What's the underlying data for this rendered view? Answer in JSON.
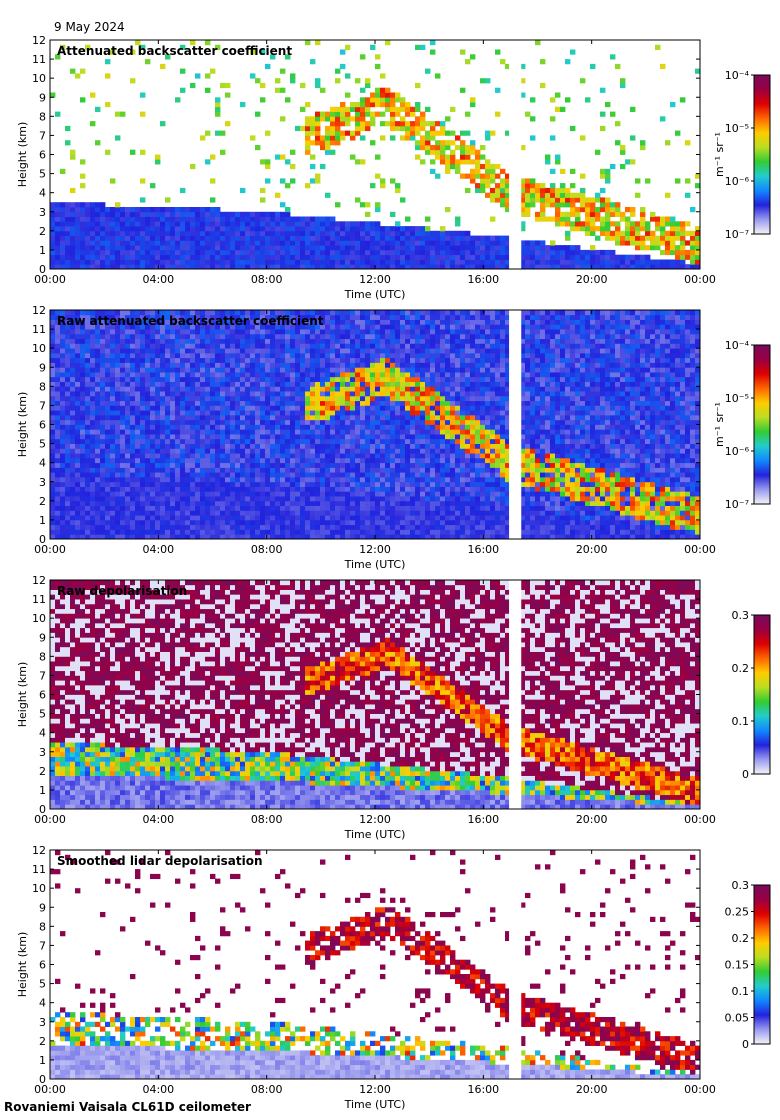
{
  "date": "9 May 2024",
  "caption": "Rovaniemi Vaisala CL61D ceilometer",
  "chart_data": [
    {
      "type": "heatmap",
      "title": "Attenuated backscatter coefficient",
      "xlabel": "Time (UTC)",
      "ylabel": "Height (km)",
      "x_ticks": [
        "00:00",
        "04:00",
        "08:00",
        "12:00",
        "16:00",
        "20:00",
        "00:00"
      ],
      "xlim": [
        0,
        24
      ],
      "ylim": [
        0,
        12
      ],
      "y_ticks": [
        0,
        1,
        2,
        3,
        4,
        5,
        6,
        7,
        8,
        9,
        10,
        11,
        12
      ],
      "data_gap_hours": [
        16.95,
        17.4
      ],
      "colorbar": {
        "label": "m⁻¹ sr⁻¹",
        "scale": "log",
        "range": [
          1e-07,
          0.0001
        ],
        "ticks": [
          "10⁻⁴",
          "10⁻⁵",
          "10⁻⁶",
          "10⁻⁷"
        ]
      },
      "features": {
        "boundary_layer_top_km": [
          [
            0,
            3.5
          ],
          [
            8,
            3.0
          ],
          [
            16,
            1.8
          ],
          [
            24,
            0.3
          ]
        ],
        "cloud_base_km": [
          [
            9.5,
            6.0
          ],
          [
            12.5,
            7.5
          ],
          [
            14,
            6.0
          ],
          [
            16.9,
            3.0
          ],
          [
            19,
            2.5
          ],
          [
            21,
            1.0
          ],
          [
            24,
            0.2
          ]
        ]
      }
    },
    {
      "type": "heatmap",
      "title": "Raw attenuated backscatter coefficient",
      "xlabel": "Time (UTC)",
      "ylabel": "Height (km)",
      "x_ticks": [
        "00:00",
        "04:00",
        "08:00",
        "12:00",
        "16:00",
        "20:00",
        "00:00"
      ],
      "xlim": [
        0,
        24
      ],
      "ylim": [
        0,
        12
      ],
      "y_ticks": [
        0,
        1,
        2,
        3,
        4,
        5,
        6,
        7,
        8,
        9,
        10,
        11,
        12
      ],
      "data_gap_hours": [
        16.95,
        17.4
      ],
      "colorbar": {
        "label": "m⁻¹ sr⁻¹",
        "scale": "log",
        "range": [
          1e-07,
          0.0001
        ],
        "ticks": [
          "10⁻⁴",
          "10⁻⁵",
          "10⁻⁶",
          "10⁻⁷"
        ]
      }
    },
    {
      "type": "heatmap",
      "title": "Raw depolarisation",
      "xlabel": "Time (UTC)",
      "ylabel": "Height (km)",
      "x_ticks": [
        "00:00",
        "04:00",
        "08:00",
        "12:00",
        "16:00",
        "20:00",
        "00:00"
      ],
      "xlim": [
        0,
        24
      ],
      "ylim": [
        0,
        12
      ],
      "y_ticks": [
        0,
        1,
        2,
        3,
        4,
        5,
        6,
        7,
        8,
        9,
        10,
        11,
        12
      ],
      "data_gap_hours": [
        16.95,
        17.4
      ],
      "colorbar": {
        "label": "",
        "scale": "linear",
        "range": [
          0,
          0.3
        ],
        "ticks": [
          "0.3",
          "0.2",
          "0.1",
          "0"
        ]
      }
    },
    {
      "type": "heatmap",
      "title": "Smoothed lidar depolarisation",
      "xlabel": "Time (UTC)",
      "ylabel": "Height (km)",
      "x_ticks": [
        "00:00",
        "04:00",
        "08:00",
        "12:00",
        "16:00",
        "20:00",
        "00:00"
      ],
      "xlim": [
        0,
        24
      ],
      "ylim": [
        0,
        12
      ],
      "y_ticks": [
        0,
        1,
        2,
        3,
        4,
        5,
        6,
        7,
        8,
        9,
        10,
        11,
        12
      ],
      "data_gap_hours": [
        16.95,
        17.4
      ],
      "colorbar": {
        "label": "",
        "scale": "linear",
        "range": [
          0,
          0.3
        ],
        "ticks": [
          "0.3",
          "0.25",
          "0.2",
          "0.15",
          "0.1",
          "0.05",
          "0"
        ]
      }
    }
  ],
  "colormap": [
    "#f4f4f8",
    "#9999ee",
    "#2222dd",
    "#1188ff",
    "#22cccc",
    "#33cc33",
    "#bbdd22",
    "#ffcc00",
    "#ff6600",
    "#dd0000",
    "#990044",
    "#7a0a5a"
  ]
}
